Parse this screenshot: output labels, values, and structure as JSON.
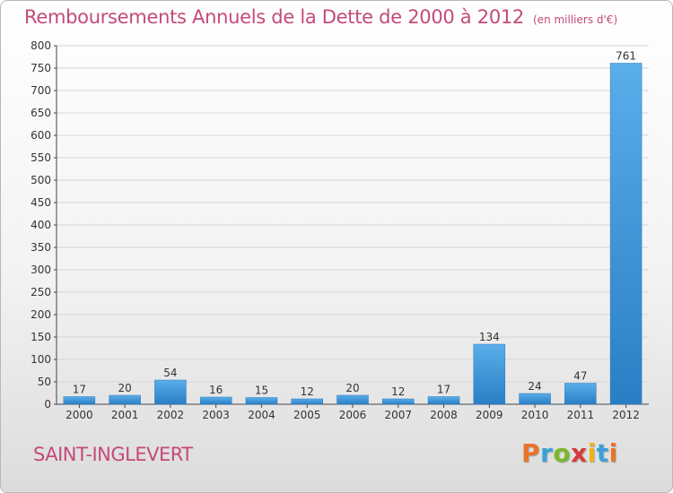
{
  "chart_data": {
    "type": "bar",
    "title": "Remboursements Annuels de la Dette de 2000 à 2012",
    "subtitle": "(en milliers d'€)",
    "categories": [
      "2000",
      "2001",
      "2002",
      "2003",
      "2004",
      "2005",
      "2006",
      "2007",
      "2008",
      "2009",
      "2010",
      "2011",
      "2012"
    ],
    "values": [
      17,
      20,
      54,
      16,
      15,
      12,
      20,
      12,
      17,
      134,
      24,
      47,
      761
    ],
    "ylim": [
      0,
      800
    ],
    "yticks": [
      0,
      50,
      100,
      150,
      200,
      250,
      300,
      350,
      400,
      450,
      500,
      550,
      600,
      650,
      700,
      750,
      800
    ],
    "grid": true,
    "bar_color": "#3a94d8"
  },
  "footer": {
    "commune": "SAINT-INGLEVERT",
    "brand_letters": [
      "P",
      "r",
      "o",
      "x",
      "i",
      "t",
      "i"
    ],
    "brand_colors": [
      "#e8742a",
      "#3aa1d8",
      "#7ab829",
      "#d63a3a",
      "#f0b21a",
      "#3aa1d8",
      "#e8742a"
    ]
  },
  "colors": {
    "title": "#c44a7a",
    "grid": "#d5d5d5"
  }
}
